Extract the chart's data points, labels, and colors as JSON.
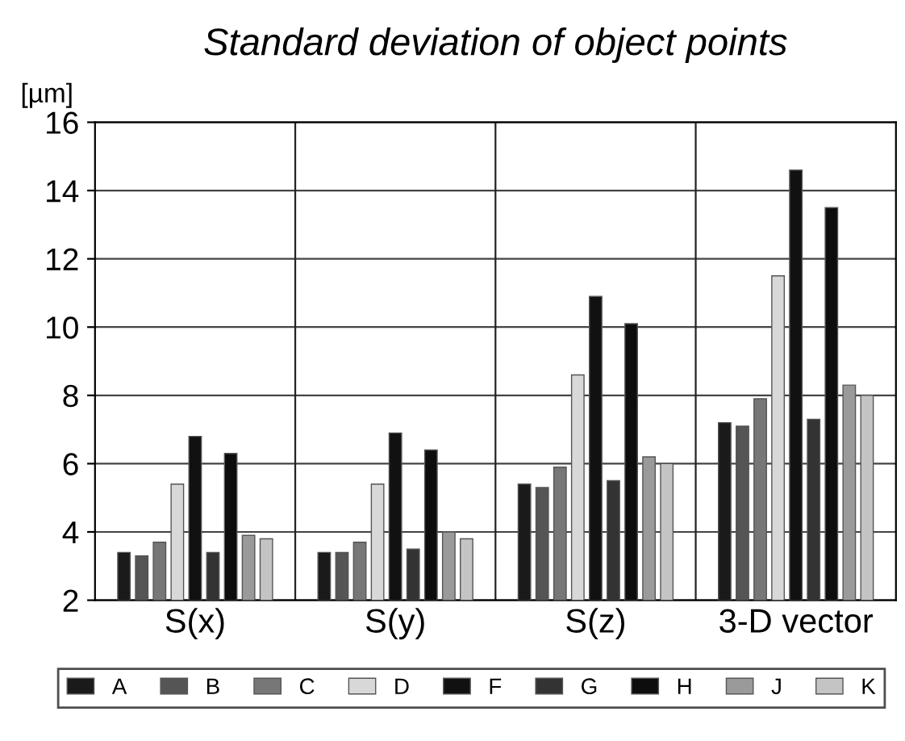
{
  "chart_data": {
    "type": "bar",
    "title": "Standard deviation of object points",
    "ylabel": "[µm]",
    "categories": [
      "S(x)",
      "S(y)",
      "S(z)",
      "3-D vector"
    ],
    "series": [
      {
        "name": "A",
        "color": "#1a1a1a",
        "values": [
          3.4,
          3.4,
          5.4,
          7.2
        ]
      },
      {
        "name": "B",
        "color": "#555555",
        "values": [
          3.3,
          3.4,
          5.3,
          7.1
        ]
      },
      {
        "name": "C",
        "color": "#777777",
        "values": [
          3.7,
          3.7,
          5.9,
          7.9
        ]
      },
      {
        "name": "D",
        "color": "#d8d8d8",
        "values": [
          5.4,
          5.4,
          8.6,
          11.5
        ]
      },
      {
        "name": "F",
        "color": "#111111",
        "values": [
          6.8,
          6.9,
          10.9,
          14.6
        ]
      },
      {
        "name": "G",
        "color": "#333333",
        "values": [
          3.4,
          3.5,
          5.5,
          7.3
        ]
      },
      {
        "name": "H",
        "color": "#0d0d0d",
        "values": [
          6.3,
          6.4,
          10.1,
          13.5
        ]
      },
      {
        "name": "J",
        "color": "#9a9a9a",
        "values": [
          3.9,
          4.0,
          6.2,
          8.3
        ]
      },
      {
        "name": "K",
        "color": "#c4c4c4",
        "values": [
          3.8,
          3.8,
          6.0,
          8.0
        ]
      }
    ],
    "ylim": [
      2,
      16
    ],
    "yticks": [
      2,
      4,
      6,
      8,
      10,
      12,
      14,
      16
    ],
    "grid": "y",
    "legend": "bottom"
  }
}
